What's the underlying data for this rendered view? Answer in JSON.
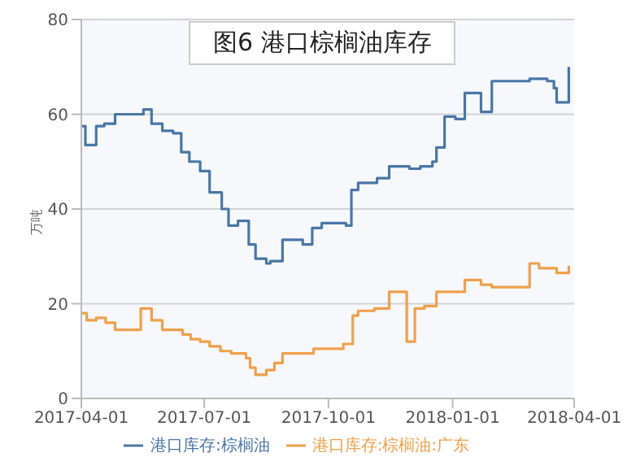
{
  "chart_data": {
    "type": "step",
    "title": "图6 港口棕榈油库存",
    "ylabel": "万吨",
    "xlim": [
      "2017-04-01",
      "2018-04-01"
    ],
    "xticks": [
      "2017-04-01",
      "2017-07-01",
      "2017-10-01",
      "2018-01-01",
      "2018-04-01"
    ],
    "ylim": [
      0,
      80
    ],
    "yticks": [
      0,
      20,
      40,
      60,
      80
    ],
    "grid": "y",
    "legend": "bottom",
    "marker": "none",
    "line_style": "solid",
    "series": [
      {
        "name": "港口库存:棕榈油",
        "color": "#4a76a8",
        "x": [
          "2017-04-01",
          "2017-04-04",
          "2017-04-12",
          "2017-04-18",
          "2017-04-26",
          "2017-05-17",
          "2017-05-23",
          "2017-05-31",
          "2017-06-08",
          "2017-06-14",
          "2017-06-20",
          "2017-06-28",
          "2017-07-05",
          "2017-07-14",
          "2017-07-19",
          "2017-07-26",
          "2017-08-03",
          "2017-08-08",
          "2017-08-16",
          "2017-08-19",
          "2017-08-28",
          "2017-09-12",
          "2017-09-19",
          "2017-09-26",
          "2017-10-14",
          "2017-10-18",
          "2017-10-23",
          "2017-11-06",
          "2017-11-15",
          "2017-11-30",
          "2017-12-08",
          "2017-12-17",
          "2017-12-20",
          "2017-12-26",
          "2018-01-03",
          "2018-01-10",
          "2018-01-22",
          "2018-01-30",
          "2018-02-27",
          "2018-03-12",
          "2018-03-17",
          "2018-03-19",
          "2018-03-28"
        ],
        "values": [
          57.5,
          53.5,
          57.5,
          58,
          60,
          61,
          58,
          56.5,
          56,
          52,
          50,
          48,
          43.5,
          40,
          36.5,
          37.5,
          32.5,
          29.5,
          28.5,
          29,
          33.5,
          32.5,
          36,
          37,
          36.5,
          44,
          45.5,
          46.5,
          49,
          48.5,
          49,
          50,
          53,
          59.5,
          59,
          64.5,
          60.5,
          67,
          67.5,
          67,
          65.5,
          62.5,
          70
        ]
      },
      {
        "name": "港口库存:棕榈油:广东",
        "color": "#f0a04b",
        "x": [
          "2017-04-01",
          "2017-04-05",
          "2017-04-12",
          "2017-04-19",
          "2017-04-26",
          "2017-05-15",
          "2017-05-23",
          "2017-05-31",
          "2017-06-15",
          "2017-06-21",
          "2017-06-28",
          "2017-07-05",
          "2017-07-13",
          "2017-07-21",
          "2017-08-01",
          "2017-08-04",
          "2017-08-08",
          "2017-08-16",
          "2017-08-22",
          "2017-08-28",
          "2017-09-20",
          "2017-10-12",
          "2017-10-19",
          "2017-10-23",
          "2017-11-04",
          "2017-11-15",
          "2017-11-28",
          "2017-12-04",
          "2017-12-11",
          "2017-12-20",
          "2018-01-10",
          "2018-01-22",
          "2018-01-30",
          "2018-02-27",
          "2018-03-06",
          "2018-03-19",
          "2018-03-28"
        ],
        "values": [
          18,
          16.5,
          17,
          16,
          14.5,
          19,
          16.5,
          14.5,
          13.5,
          12.5,
          12,
          11,
          10,
          9.5,
          8.5,
          6.5,
          5,
          6,
          7.5,
          9.5,
          10.5,
          11.5,
          17.5,
          18.5,
          19,
          22.5,
          12,
          19,
          19.5,
          22.5,
          25,
          24,
          23.5,
          28.5,
          27.5,
          26.5,
          28
        ]
      }
    ]
  }
}
